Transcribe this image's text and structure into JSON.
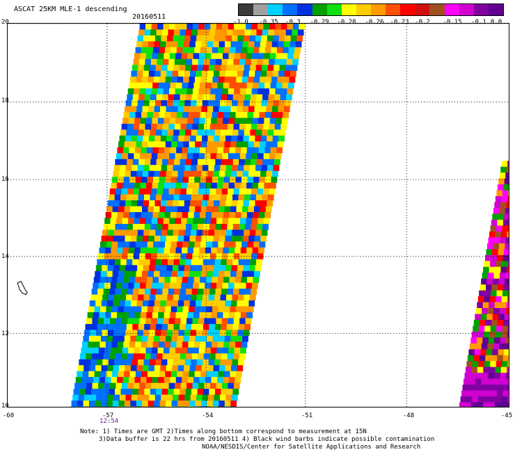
{
  "header": {
    "title": "ASCAT 25KM MLE-1 descending",
    "date": "20160511"
  },
  "colorbar": {
    "labels": [
      "-1.0",
      "-0.35",
      "-0.3",
      "-0.29",
      "-0.28",
      "-0.26",
      "-0.23",
      "-0.2",
      "-0.15",
      "-0.1",
      "0.0"
    ],
    "colors": [
      "#3a3a3a",
      "#a0a0a0",
      "#00d0ff",
      "#0070ff",
      "#0030e0",
      "#00a000",
      "#10e010",
      "#ffff00",
      "#ffcc00",
      "#ff9900",
      "#ff5000",
      "#ff0000",
      "#d01010",
      "#a05020",
      "#ff00ff",
      "#d000d0",
      "#8000a0",
      "#600090"
    ]
  },
  "axes": {
    "lat_labels": [
      "20",
      "18",
      "16",
      "14",
      "12",
      "10"
    ],
    "lon_labels": [
      "-60",
      "-57",
      "-54",
      "-51",
      "-48",
      "-45"
    ],
    "pass_time": "12:54"
  },
  "notes": {
    "line1": "Note: 1) Times are GMT 2)Times along bottom correspond to measurement at 15N",
    "line2": "3)Data buffer is 22 hrs from 20160511 4) Black wind barbs indicate possible contamination",
    "line3": "NOAA/NESDIS/Center for Satellite Applications and Research"
  }
}
